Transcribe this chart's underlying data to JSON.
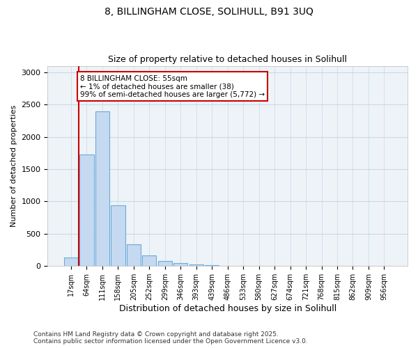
{
  "title_line1": "8, BILLINGHAM CLOSE, SOLIHULL, B91 3UQ",
  "title_line2": "Size of property relative to detached houses in Solihull",
  "xlabel": "Distribution of detached houses by size in Solihull",
  "ylabel": "Number of detached properties",
  "bin_labels": [
    "17sqm",
    "64sqm",
    "111sqm",
    "158sqm",
    "205sqm",
    "252sqm",
    "299sqm",
    "346sqm",
    "393sqm",
    "439sqm",
    "486sqm",
    "533sqm",
    "580sqm",
    "627sqm",
    "674sqm",
    "721sqm",
    "768sqm",
    "815sqm",
    "862sqm",
    "909sqm",
    "956sqm"
  ],
  "bar_heights": [
    130,
    1730,
    2400,
    940,
    340,
    160,
    80,
    50,
    25,
    12,
    5,
    3,
    2,
    1,
    1,
    1,
    0,
    0,
    0,
    0,
    0
  ],
  "bar_color": "#c5d9f0",
  "bar_edge_color": "#6aabda",
  "annotation_text": "8 BILLINGHAM CLOSE: 55sqm\n← 1% of detached houses are smaller (38)\n99% of semi-detached houses are larger (5,772) →",
  "annotation_box_color": "#ffffff",
  "annotation_box_edge": "#cc0000",
  "vline_color": "#cc0000",
  "ylim": [
    0,
    3100
  ],
  "yticks": [
    0,
    500,
    1000,
    1500,
    2000,
    2500,
    3000
  ],
  "footer_line1": "Contains HM Land Registry data © Crown copyright and database right 2025.",
  "footer_line2": "Contains public sector information licensed under the Open Government Licence v3.0.",
  "bg_color": "#ffffff",
  "plot_bg_color": "#eef3f8",
  "grid_color": "#c8d8e8"
}
